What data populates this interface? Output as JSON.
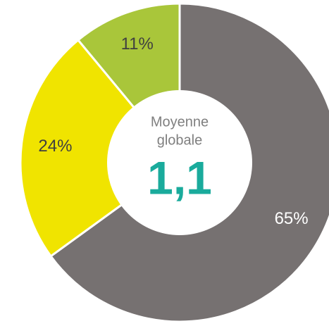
{
  "chart_data": {
    "type": "pie",
    "values": [
      65,
      24,
      11
    ],
    "value_labels": [
      "65%",
      "24%",
      "11%"
    ],
    "colors": [
      "#767171",
      "#f0e400",
      "#a9c63a"
    ],
    "label_colors": [
      "#ffffff",
      "#404040",
      "#404040"
    ],
    "center_label": [
      "Moyenne",
      "globale"
    ],
    "center_value": "1,1"
  }
}
